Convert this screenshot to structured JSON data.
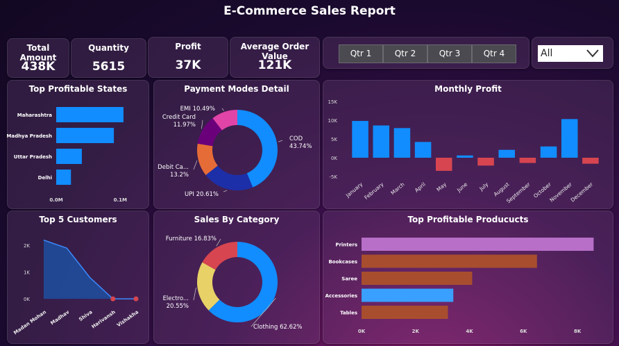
{
  "header": {
    "title": "E-Commerce Sales Report"
  },
  "kpis": [
    {
      "label": "Total Amount",
      "value": "438K"
    },
    {
      "label": "Quantity",
      "value": "5615"
    },
    {
      "label": "Profit",
      "value": "37K"
    },
    {
      "label": "Average Order Value",
      "value": "121K"
    }
  ],
  "quarter_filter": {
    "buttons": [
      "Qtr 1",
      "Qtr 2",
      "Qtr 3",
      "Qtr 4"
    ]
  },
  "dropdown": {
    "selected": "All"
  },
  "chart_data": [
    {
      "id": "states",
      "type": "bar",
      "orientation": "horizontal",
      "title": "Top Profitable States",
      "categories": [
        "Maharashtra",
        "Madhya Pradesh",
        "Uttar Pradesh",
        "Delhi"
      ],
      "values": [
        105000,
        90000,
        40000,
        23000
      ],
      "tick_labels": [
        "0.0M",
        "0.1M"
      ],
      "ticks": [
        0,
        100000
      ],
      "xlim": [
        0,
        130000
      ]
    },
    {
      "id": "payment",
      "type": "pie",
      "donut": true,
      "title": "Payment Modes Detail",
      "slices": [
        {
          "name": "COD",
          "value": 43.74,
          "label": "COD",
          "pct": "43.74%",
          "color": "#118dff"
        },
        {
          "name": "UPI",
          "value": 20.61,
          "label": "UPI 20.61%",
          "pct": "",
          "color": "#1c2fa8"
        },
        {
          "name": "Debit Card",
          "value": 13.2,
          "label": "Debit Ca...",
          "pct": "13.2%",
          "color": "#e66c37"
        },
        {
          "name": "Credit Card",
          "value": 11.97,
          "label": "Credit Card",
          "pct": "11.97%",
          "color": "#6b007b"
        },
        {
          "name": "EMI",
          "value": 10.49,
          "label": "EMI 10.49%",
          "pct": "",
          "color": "#e044a7"
        }
      ]
    },
    {
      "id": "monthly",
      "type": "bar",
      "title": "Monthly Profit",
      "categories": [
        "January",
        "February",
        "March",
        "April",
        "May",
        "June",
        "July",
        "August",
        "September",
        "October",
        "November",
        "December"
      ],
      "values": [
        9800,
        8600,
        7900,
        4200,
        -3500,
        600,
        -2100,
        2100,
        -1400,
        3000,
        10300,
        -1600
      ],
      "ylim": [
        -5000,
        15000
      ],
      "ticks": [
        -5000,
        0,
        5000,
        10000,
        15000
      ],
      "tick_labels": [
        "-5K",
        "0K",
        "5K",
        "10K",
        "15K"
      ],
      "positive_color": "#118dff",
      "negative_color": "#d64550"
    },
    {
      "id": "customers",
      "type": "area",
      "title": "Top 5 Customers",
      "categories": [
        "Madan Mohan",
        "Madhav",
        "Shiva",
        "Harivansh",
        "Vishakha"
      ],
      "values": [
        2200,
        1900,
        800,
        0,
        0
      ],
      "ylim": [
        -100,
        2500
      ],
      "ticks": [
        0,
        1000,
        2000
      ],
      "tick_labels": [
        "0K",
        "1K",
        "2K"
      ]
    },
    {
      "id": "category",
      "type": "pie",
      "donut": true,
      "title": "Sales By Category",
      "slices": [
        {
          "name": "Clothing",
          "value": 62.62,
          "label": "Clothing 62.62%",
          "pct": "",
          "color": "#118dff"
        },
        {
          "name": "Electronics",
          "value": 20.55,
          "label": "Electro...",
          "pct": "20.55%",
          "color": "#e8d166"
        },
        {
          "name": "Furniture",
          "value": 16.83,
          "label": "Furniture 16.83%",
          "pct": "",
          "color": "#d64550"
        }
      ]
    },
    {
      "id": "products",
      "type": "bar",
      "orientation": "horizontal",
      "title": "Top Profitable Producucts",
      "categories": [
        "Printers",
        "Bookcases",
        "Saree",
        "Accessories",
        "Tables"
      ],
      "values": [
        8600,
        6500,
        4100,
        3400,
        3200
      ],
      "colors": [
        "#b86fc8",
        "#a84e2e",
        "#a84e2e",
        "#3aa0ff",
        "#a84e2e"
      ],
      "xlim": [
        0,
        9000
      ],
      "ticks": [
        0,
        2000,
        4000,
        6000,
        8000
      ],
      "tick_labels": [
        "0K",
        "2K",
        "4K",
        "6K",
        "8K"
      ]
    }
  ]
}
